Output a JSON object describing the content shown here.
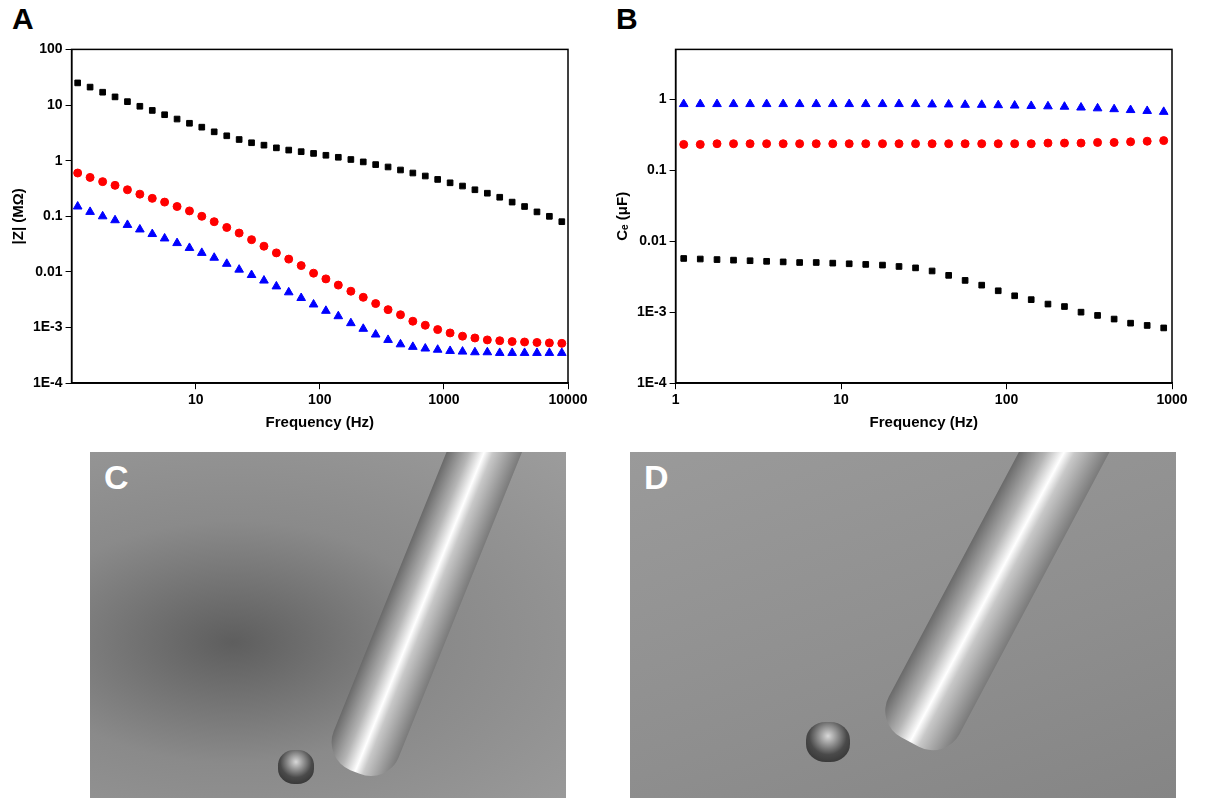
{
  "chart_data": [
    {
      "type": "scatter",
      "annotations": [
        "A"
      ],
      "x_label": "Frequency (Hz)",
      "y_label": "|Z| (MΩ)",
      "log": true,
      "grid": false,
      "xlim": [
        1,
        10000
      ],
      "xticks": [
        10,
        100,
        1000,
        10000
      ],
      "ylim": [
        0.0001,
        100
      ],
      "yticks": [
        {
          "value": 0.0001,
          "label": "1E-4"
        },
        {
          "value": 0.001,
          "label": "1E-3"
        },
        0.01,
        0.1,
        1,
        10,
        100
      ],
      "x": [
        1.12,
        1.41,
        1.78,
        2.24,
        2.82,
        3.55,
        4.47,
        5.62,
        7.08,
        8.91,
        11.2,
        14.1,
        17.8,
        22.4,
        28.2,
        35.5,
        44.7,
        56.2,
        70.8,
        89.1,
        112,
        141,
        178,
        224,
        282,
        355,
        447,
        562,
        708,
        891,
        1122,
        1413,
        1778,
        2239,
        2818,
        3548,
        4467,
        5623,
        7079,
        8913
      ],
      "series": [
        {
          "color": "#000000",
          "marker": "square",
          "values": [
            25,
            21,
            17,
            14,
            11.5,
            9.5,
            8,
            6.7,
            5.6,
            4.7,
            4.0,
            3.3,
            2.8,
            2.4,
            2.1,
            1.9,
            1.7,
            1.55,
            1.45,
            1.35,
            1.25,
            1.15,
            1.05,
            0.95,
            0.85,
            0.77,
            0.68,
            0.6,
            0.53,
            0.46,
            0.4,
            0.35,
            0.3,
            0.26,
            0.22,
            0.18,
            0.15,
            0.12,
            0.1,
            0.08
          ]
        },
        {
          "color": "#ff0000",
          "marker": "circle",
          "values": [
            0.6,
            0.5,
            0.42,
            0.36,
            0.3,
            0.25,
            0.21,
            0.18,
            0.15,
            0.125,
            0.1,
            0.08,
            0.063,
            0.05,
            0.038,
            0.029,
            0.022,
            0.017,
            0.013,
            0.0095,
            0.0075,
            0.0058,
            0.0045,
            0.0035,
            0.0027,
            0.0021,
            0.0017,
            0.0013,
            0.0011,
            0.00092,
            0.0008,
            0.0007,
            0.00065,
            0.0006,
            0.00058,
            0.00056,
            0.00055,
            0.00054,
            0.00053,
            0.00052
          ]
        },
        {
          "color": "#0000ff",
          "marker": "triangle",
          "values": [
            0.15,
            0.12,
            0.1,
            0.085,
            0.07,
            0.058,
            0.048,
            0.04,
            0.033,
            0.027,
            0.022,
            0.018,
            0.014,
            0.011,
            0.0088,
            0.007,
            0.0055,
            0.0043,
            0.0034,
            0.0026,
            0.002,
            0.0016,
            0.0012,
            0.00095,
            0.00075,
            0.0006,
            0.0005,
            0.00045,
            0.00042,
            0.0004,
            0.00038,
            0.00037,
            0.00036,
            0.00036,
            0.00035,
            0.00035,
            0.00035,
            0.00035,
            0.00035,
            0.00035
          ]
        }
      ]
    },
    {
      "type": "scatter",
      "annotations": [
        "B"
      ],
      "x_label": "Frequency (Hz)",
      "y_label": "Cₑ (μF)",
      "log": true,
      "grid": false,
      "xlim": [
        1,
        1000
      ],
      "xticks": [
        1,
        10,
        100,
        1000
      ],
      "ylim": [
        0.0001,
        5
      ],
      "yticks": [
        {
          "value": 0.0001,
          "label": "1E-4"
        },
        {
          "value": 0.001,
          "label": "1E-3"
        },
        0.01,
        0.1,
        1
      ],
      "x": [
        1.12,
        1.41,
        1.78,
        2.24,
        2.82,
        3.55,
        4.47,
        5.62,
        7.08,
        8.91,
        11.2,
        14.1,
        17.8,
        22.4,
        28.2,
        35.5,
        44.7,
        56.2,
        70.8,
        89.1,
        112,
        141,
        178,
        224,
        282,
        355,
        447,
        562,
        708,
        891
      ],
      "series": [
        {
          "color": "#000000",
          "marker": "square",
          "values": [
            0.0057,
            0.0056,
            0.0055,
            0.0054,
            0.0053,
            0.0052,
            0.0051,
            0.005,
            0.005,
            0.0049,
            0.0048,
            0.0047,
            0.0046,
            0.0044,
            0.0042,
            0.0038,
            0.0033,
            0.0028,
            0.0024,
            0.002,
            0.0017,
            0.0015,
            0.0013,
            0.0012,
            0.001,
            0.0009,
            0.0008,
            0.0007,
            0.00065,
            0.0006
          ]
        },
        {
          "color": "#ff0000",
          "marker": "circle",
          "values": [
            0.23,
            0.23,
            0.235,
            0.235,
            0.235,
            0.235,
            0.235,
            0.235,
            0.235,
            0.235,
            0.235,
            0.235,
            0.235,
            0.235,
            0.235,
            0.235,
            0.235,
            0.235,
            0.235,
            0.235,
            0.235,
            0.235,
            0.24,
            0.24,
            0.24,
            0.245,
            0.245,
            0.25,
            0.255,
            0.26
          ]
        },
        {
          "color": "#0000ff",
          "marker": "triangle",
          "values": [
            0.85,
            0.85,
            0.85,
            0.85,
            0.85,
            0.85,
            0.85,
            0.85,
            0.85,
            0.85,
            0.85,
            0.85,
            0.85,
            0.85,
            0.85,
            0.84,
            0.84,
            0.83,
            0.83,
            0.82,
            0.81,
            0.8,
            0.79,
            0.78,
            0.76,
            0.74,
            0.72,
            0.7,
            0.68,
            0.66
          ]
        }
      ]
    }
  ],
  "images": [
    {
      "label": "C"
    },
    {
      "label": "D"
    }
  ]
}
